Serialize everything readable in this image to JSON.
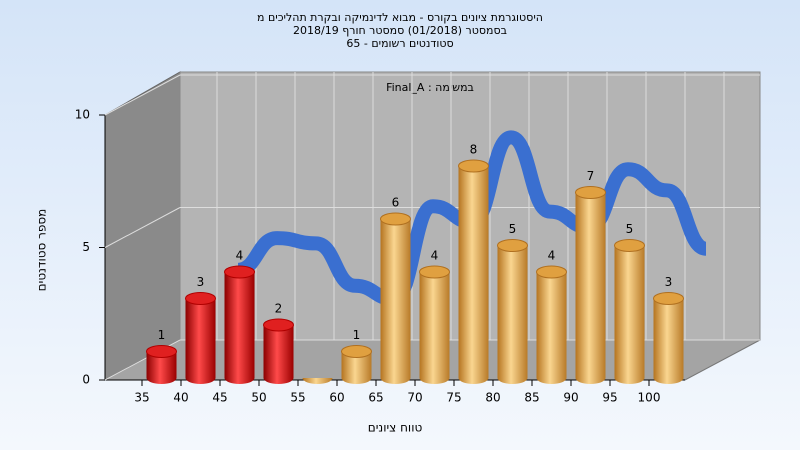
{
  "chart_data": {
    "type": "bar3d",
    "title": [
      "היסטוגרמת ציונים בקורס - מבוא לדינמיקה ובקרת תהליכים מ",
      "בסמסטר  (01/2018)  סמסטר חורף 2018/19",
      "סטודנטים רשומים - 65"
    ],
    "annotation": "Final_A : במשימה",
    "x_label": "טווח ציונים",
    "y_label": "מספר סטודנטים",
    "categories": [
      "35",
      "40",
      "45",
      "50",
      "55",
      "60",
      "65",
      "70",
      "75",
      "80",
      "85",
      "90",
      "95",
      "100"
    ],
    "values": [
      1,
      3,
      4,
      2,
      0,
      1,
      6,
      4,
      8,
      5,
      4,
      7,
      5,
      3
    ],
    "colors": [
      "red",
      "red",
      "red",
      "red",
      "gold",
      "gold",
      "gold",
      "gold",
      "gold",
      "gold",
      "gold",
      "gold",
      "gold",
      "gold"
    ],
    "trend": {
      "color": "#3a6fd0",
      "values": [
        null,
        3.4,
        4.6,
        4.4,
        2.8,
        2.3,
        5.8,
        5.2,
        8.4,
        5.6,
        5.0,
        7.2,
        6.4,
        4.2
      ]
    },
    "ylim": [
      0,
      10
    ],
    "yticks": [
      0,
      5,
      10
    ],
    "grid": true
  }
}
